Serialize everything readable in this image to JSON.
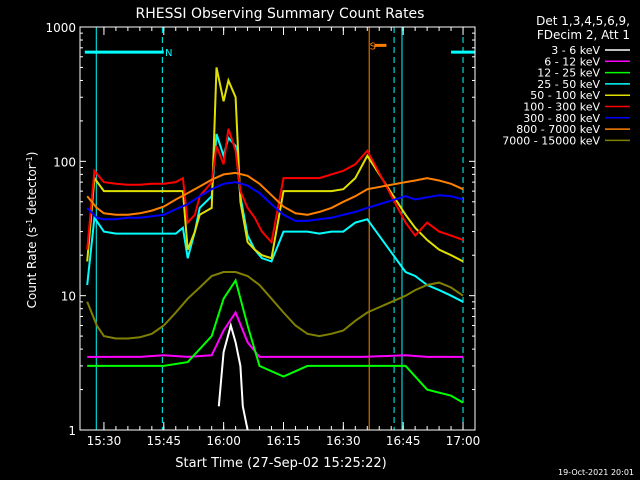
{
  "chart_data": {
    "type": "line",
    "title": "RHESSI Observing Summary Count Rates",
    "xlabel": "Start Time (27-Sep-02 15:25:22)",
    "ylabel_main": "Count Rate (s",
    "ylabel_sup1": "-1",
    "ylabel_mid": " detector",
    "ylabel_sup2": "-1",
    "ylabel_end": ")",
    "yscale": "log",
    "ylim": [
      1,
      1000
    ],
    "xlim_minutes": [
      15.4,
      17.05
    ],
    "y_ticks": [
      {
        "value": 1,
        "label": "1"
      },
      {
        "value": 10,
        "label": "10"
      },
      {
        "value": 100,
        "label": "100"
      },
      {
        "value": 1000,
        "label": "1000"
      }
    ],
    "x_ticks": [
      {
        "value": 15.5,
        "label": "15:30"
      },
      {
        "value": 15.75,
        "label": "15:45"
      },
      {
        "value": 16.0,
        "label": "16:00"
      },
      {
        "value": 16.25,
        "label": "16:15"
      },
      {
        "value": 16.5,
        "label": "16:30"
      },
      {
        "value": 16.75,
        "label": "16:45"
      },
      {
        "value": 17.0,
        "label": "17:00"
      }
    ],
    "legend_header": [
      "Det 1,3,4,5,6,9,",
      "FDecim 2, Att 1"
    ],
    "footer": "19-Oct-2021 20:01",
    "annotations": [
      {
        "label": "N",
        "x": 15.755,
        "y": 650,
        "color": "#00ffff"
      },
      {
        "label": "S",
        "x": 16.61,
        "y": 730,
        "color": "#ff8000"
      }
    ],
    "night_bars": [
      {
        "x_start": 15.42,
        "x_end": 15.75,
        "y": 650,
        "color": "#00ffff"
      },
      {
        "x_start": 16.95,
        "x_end": 17.05,
        "y": 650,
        "color": "#00ffff"
      },
      {
        "x_start": 16.63,
        "x_end": 16.68,
        "y": 730,
        "color": "#ff8000"
      }
    ],
    "vlines": [
      {
        "x": 15.468,
        "color": "#00ffff",
        "dashed": false
      },
      {
        "x": 15.744,
        "color": "#00ffff",
        "dashed": true
      },
      {
        "x": 16.608,
        "color": "#ff8000",
        "dashed": false
      },
      {
        "x": 16.712,
        "color": "#00ffff",
        "dashed": true
      },
      {
        "x": 16.745,
        "color": "#00ffff",
        "dashed": false
      },
      {
        "x": 17.0,
        "color": "#00ffff",
        "dashed": true
      }
    ],
    "series": [
      {
        "name": "3 - 6 keV",
        "color": "#ffffff",
        "x": [
          15.98,
          16.0,
          16.03,
          16.05,
          16.07,
          16.08,
          16.1
        ],
        "y": [
          1.5,
          3.8,
          6.0,
          4.5,
          3.0,
          1.5,
          1
        ]
      },
      {
        "name": "6 - 12 keV",
        "color": "#ff00ff",
        "x": [
          15.43,
          15.55,
          15.65,
          15.75,
          15.85,
          15.95,
          16.0,
          16.05,
          16.1,
          16.15,
          16.25,
          16.35,
          16.45,
          16.58,
          16.76,
          16.85,
          16.95,
          17.0
        ],
        "y": [
          3.5,
          3.5,
          3.5,
          3.6,
          3.5,
          3.6,
          5.5,
          7.5,
          4.5,
          3.5,
          3.5,
          3.5,
          3.5,
          3.5,
          3.6,
          3.5,
          3.5,
          3.5
        ]
      },
      {
        "name": "12 - 25 keV",
        "color": "#00ff00",
        "x": [
          15.43,
          15.55,
          15.65,
          15.75,
          15.85,
          15.95,
          16.0,
          16.05,
          16.1,
          16.15,
          16.25,
          16.35,
          16.45,
          16.58,
          16.76,
          16.85,
          16.95,
          17.0
        ],
        "y": [
          3.0,
          3.0,
          3.0,
          3.0,
          3.2,
          5.0,
          9.5,
          13.0,
          6.0,
          3.0,
          2.5,
          3.0,
          3.0,
          3.0,
          3.0,
          2.0,
          1.8,
          1.6
        ]
      },
      {
        "name": "25 - 50 keV",
        "color": "#00ffff",
        "x": [
          15.43,
          15.46,
          15.5,
          15.55,
          15.6,
          15.65,
          15.7,
          15.75,
          15.8,
          15.83,
          15.85,
          15.88,
          15.9,
          15.95,
          15.97,
          16.0,
          16.02,
          16.05,
          16.07,
          16.1,
          16.13,
          16.16,
          16.2,
          16.25,
          16.3,
          16.35,
          16.4,
          16.45,
          16.5,
          16.55,
          16.6,
          16.76,
          16.8,
          16.85,
          16.9,
          16.95,
          17.0
        ],
        "y": [
          12,
          38,
          30,
          29,
          29,
          29,
          29,
          29,
          29,
          32,
          19,
          30,
          45,
          55,
          160,
          110,
          150,
          130,
          55,
          28,
          22,
          19,
          18,
          30,
          30,
          30,
          29,
          30,
          30,
          35,
          37,
          15,
          14,
          12,
          11,
          10,
          9
        ]
      },
      {
        "name": "50 - 100 keV",
        "color": "#e0e000",
        "x": [
          15.43,
          15.46,
          15.5,
          15.55,
          15.6,
          15.65,
          15.7,
          15.75,
          15.8,
          15.83,
          15.85,
          15.88,
          15.9,
          15.95,
          15.97,
          16.0,
          16.02,
          16.05,
          16.07,
          16.1,
          16.13,
          16.16,
          16.2,
          16.25,
          16.3,
          16.35,
          16.4,
          16.45,
          16.5,
          16.55,
          16.6,
          16.76,
          16.8,
          16.85,
          16.9,
          16.95,
          17.0
        ],
        "y": [
          18,
          75,
          60,
          60,
          60,
          60,
          60,
          60,
          60,
          60,
          22,
          30,
          40,
          45,
          500,
          280,
          400,
          300,
          50,
          25,
          22,
          20,
          19,
          60,
          60,
          60,
          60,
          60,
          62,
          75,
          110,
          40,
          32,
          26,
          22,
          20,
          18
        ]
      },
      {
        "name": "100 - 300 keV",
        "color": "#ff0000",
        "x": [
          15.43,
          15.46,
          15.5,
          15.55,
          15.6,
          15.65,
          15.7,
          15.75,
          15.8,
          15.83,
          15.85,
          15.88,
          15.9,
          15.95,
          15.97,
          16.0,
          16.02,
          16.05,
          16.07,
          16.1,
          16.13,
          16.16,
          16.2,
          16.25,
          16.3,
          16.35,
          16.4,
          16.45,
          16.5,
          16.55,
          16.6,
          16.76,
          16.8,
          16.85,
          16.9,
          16.95,
          17.0
        ],
        "y": [
          22,
          85,
          70,
          68,
          67,
          67,
          68,
          68,
          70,
          75,
          35,
          40,
          55,
          70,
          130,
          95,
          175,
          120,
          60,
          45,
          38,
          30,
          25,
          75,
          75,
          75,
          75,
          80,
          85,
          95,
          120,
          35,
          28,
          35,
          30,
          28,
          26
        ]
      },
      {
        "name": "300 - 800 keV",
        "color": "#0000ff",
        "x": [
          15.43,
          15.47,
          15.5,
          15.55,
          15.6,
          15.65,
          15.7,
          15.75,
          15.8,
          15.85,
          15.9,
          15.95,
          16.0,
          16.05,
          16.1,
          16.15,
          16.2,
          16.25,
          16.3,
          16.35,
          16.4,
          16.45,
          16.5,
          16.55,
          16.6,
          16.76,
          16.8,
          16.85,
          16.9,
          16.95,
          17.0
        ],
        "y": [
          45,
          38,
          37,
          37,
          38,
          38,
          39,
          40,
          44,
          48,
          55,
          62,
          68,
          70,
          66,
          58,
          48,
          40,
          36,
          36,
          37,
          38,
          40,
          42,
          45,
          55,
          52,
          54,
          56,
          55,
          52
        ]
      },
      {
        "name": "800 - 7000 keV",
        "color": "#ff8000",
        "x": [
          15.43,
          15.47,
          15.5,
          15.55,
          15.6,
          15.65,
          15.7,
          15.75,
          15.8,
          15.85,
          15.9,
          15.95,
          16.0,
          16.05,
          16.1,
          16.15,
          16.2,
          16.25,
          16.3,
          16.35,
          16.4,
          16.45,
          16.5,
          16.55,
          16.6,
          16.76,
          16.8,
          16.85,
          16.9,
          16.95,
          17.0
        ],
        "y": [
          55,
          45,
          41,
          40,
          40,
          41,
          43,
          46,
          52,
          58,
          65,
          73,
          80,
          82,
          78,
          68,
          56,
          46,
          41,
          40,
          42,
          45,
          50,
          55,
          62,
          70,
          72,
          75,
          72,
          68,
          62
        ]
      },
      {
        "name": "7000 - 15000 keV",
        "color": "#808000",
        "x": [
          15.43,
          15.47,
          15.5,
          15.55,
          15.6,
          15.65,
          15.7,
          15.75,
          15.8,
          15.85,
          15.9,
          15.95,
          16.0,
          16.05,
          16.1,
          16.15,
          16.2,
          16.25,
          16.3,
          16.35,
          16.4,
          16.45,
          16.5,
          16.55,
          16.6,
          16.76,
          16.8,
          16.85,
          16.9,
          16.95,
          17.0
        ],
        "y": [
          9,
          6,
          5,
          4.8,
          4.8,
          4.9,
          5.2,
          6.0,
          7.5,
          9.5,
          11.5,
          14,
          15,
          15,
          14,
          12,
          9.5,
          7.5,
          6,
          5.2,
          5,
          5.2,
          5.5,
          6.5,
          7.5,
          10,
          11,
          12,
          12.5,
          11.5,
          10
        ]
      }
    ]
  }
}
